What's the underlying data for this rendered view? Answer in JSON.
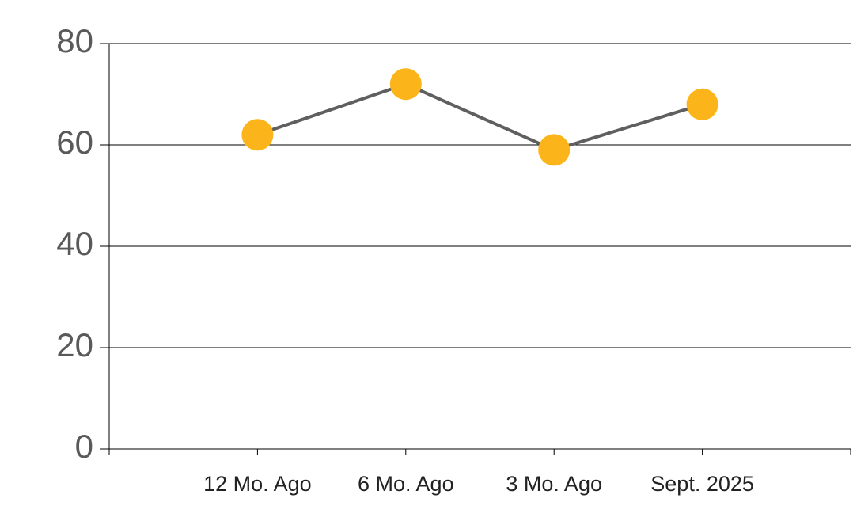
{
  "chart_data": {
    "type": "line",
    "categories": [
      "12 Mo. Ago",
      "6 Mo. Ago",
      "3 Mo. Ago",
      "Sept. 2025"
    ],
    "series": [
      {
        "color": "#fbb41a",
        "line_color": "#5f5f5f",
        "values": [
          62,
          72,
          59,
          68
        ]
      }
    ],
    "ylim": [
      0,
      80
    ],
    "yticks": [
      0,
      20,
      40,
      60,
      80
    ],
    "grid": true
  }
}
